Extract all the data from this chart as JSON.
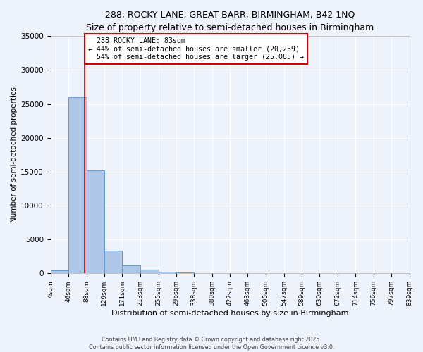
{
  "title1": "288, ROCKY LANE, GREAT BARR, BIRMINGHAM, B42 1NQ",
  "title2": "Size of property relative to semi-detached houses in Birmingham",
  "xlabel": "Distribution of semi-detached houses by size in Birmingham",
  "ylabel": "Number of semi-detached properties",
  "bin_edges": [
    4,
    46,
    88,
    129,
    171,
    213,
    255,
    296,
    338,
    380,
    422,
    463,
    505,
    547,
    589,
    630,
    672,
    714,
    756,
    797,
    839
  ],
  "bar_heights": [
    500,
    26000,
    15200,
    3400,
    1200,
    600,
    200,
    100,
    60,
    40,
    20,
    15,
    10,
    8,
    5,
    4,
    3,
    2,
    1,
    1
  ],
  "bar_color": "#aec6e8",
  "bar_edge_color": "#5b9bd5",
  "property_size": 83,
  "property_label": "288 ROCKY LANE: 83sqm",
  "smaller_pct": 44,
  "smaller_count": 20259,
  "larger_pct": 54,
  "larger_count": 25085,
  "vline_color": "#cc0000",
  "ylim": [
    0,
    35000
  ],
  "yticks": [
    0,
    5000,
    10000,
    15000,
    20000,
    25000,
    30000,
    35000
  ],
  "background_color": "#eef2fb",
  "grid_color": "#ffffff",
  "footer1": "Contains HM Land Registry data © Crown copyright and database right 2025.",
  "footer2": "Contains public sector information licensed under the Open Government Licence v3.0."
}
